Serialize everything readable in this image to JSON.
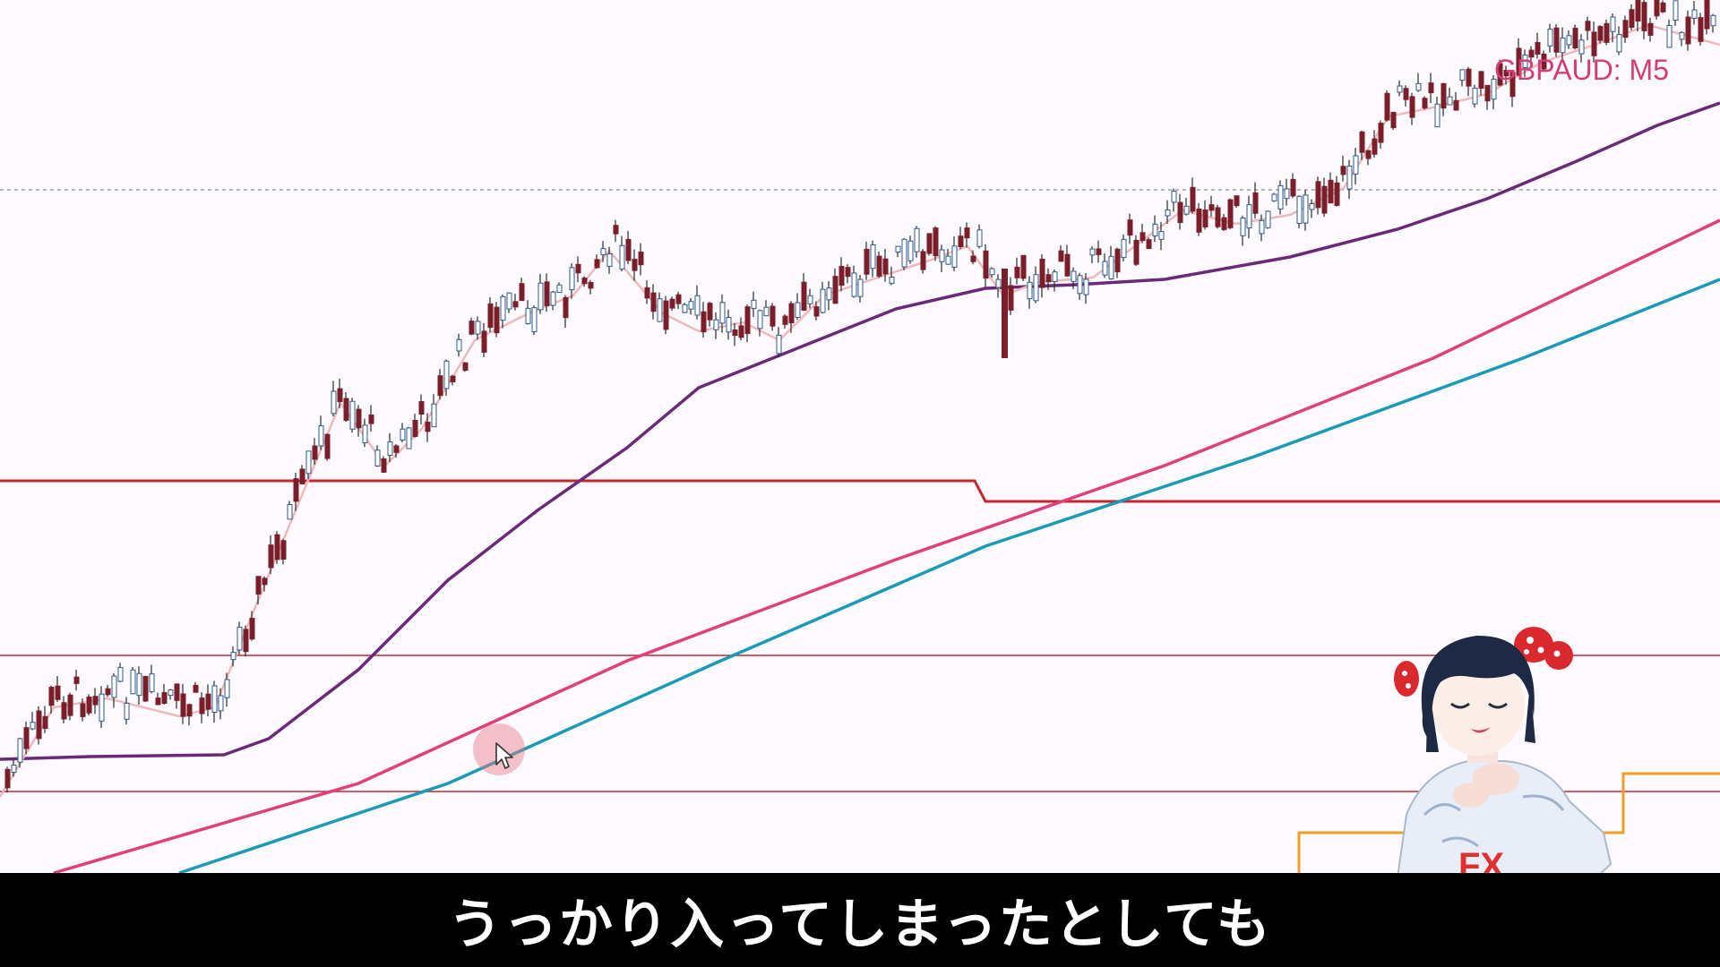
{
  "chart": {
    "symbol_label": "GBPAUD: M5"
  },
  "subtitle": {
    "text": "うっかり入ってしまったとしても"
  },
  "colors": {
    "background": "#fdfaff",
    "candle_bull": "#2b5a8c",
    "candle_bear": "#7a1f2a",
    "ma_fast": "#f0b8b8",
    "ma_purple": "#6b2a78",
    "ma_pink": "#e0407a",
    "ma_teal": "#1a9bb5",
    "support_lines": "#c4282d",
    "orange_step": "#f0a020",
    "symbol_text": "#d63c74"
  },
  "chart_data": {
    "type": "candlestick",
    "symbol": "GBPAUD",
    "timeframe": "M5",
    "price_axis_labels_visible": false,
    "indicators": [
      "fast MA (light pink)",
      "MA (purple)",
      "MA (pink)",
      "MA (teal)"
    ],
    "horizontal_lines": [
      "thick red step line",
      "thin red line",
      "thin red line",
      "dotted gray line"
    ],
    "trend": "up"
  },
  "avatar": {
    "icon": "anime-girl-avatar",
    "shirt_text": "FX"
  },
  "cursor": {
    "icon": "mouse-pointer-icon"
  }
}
